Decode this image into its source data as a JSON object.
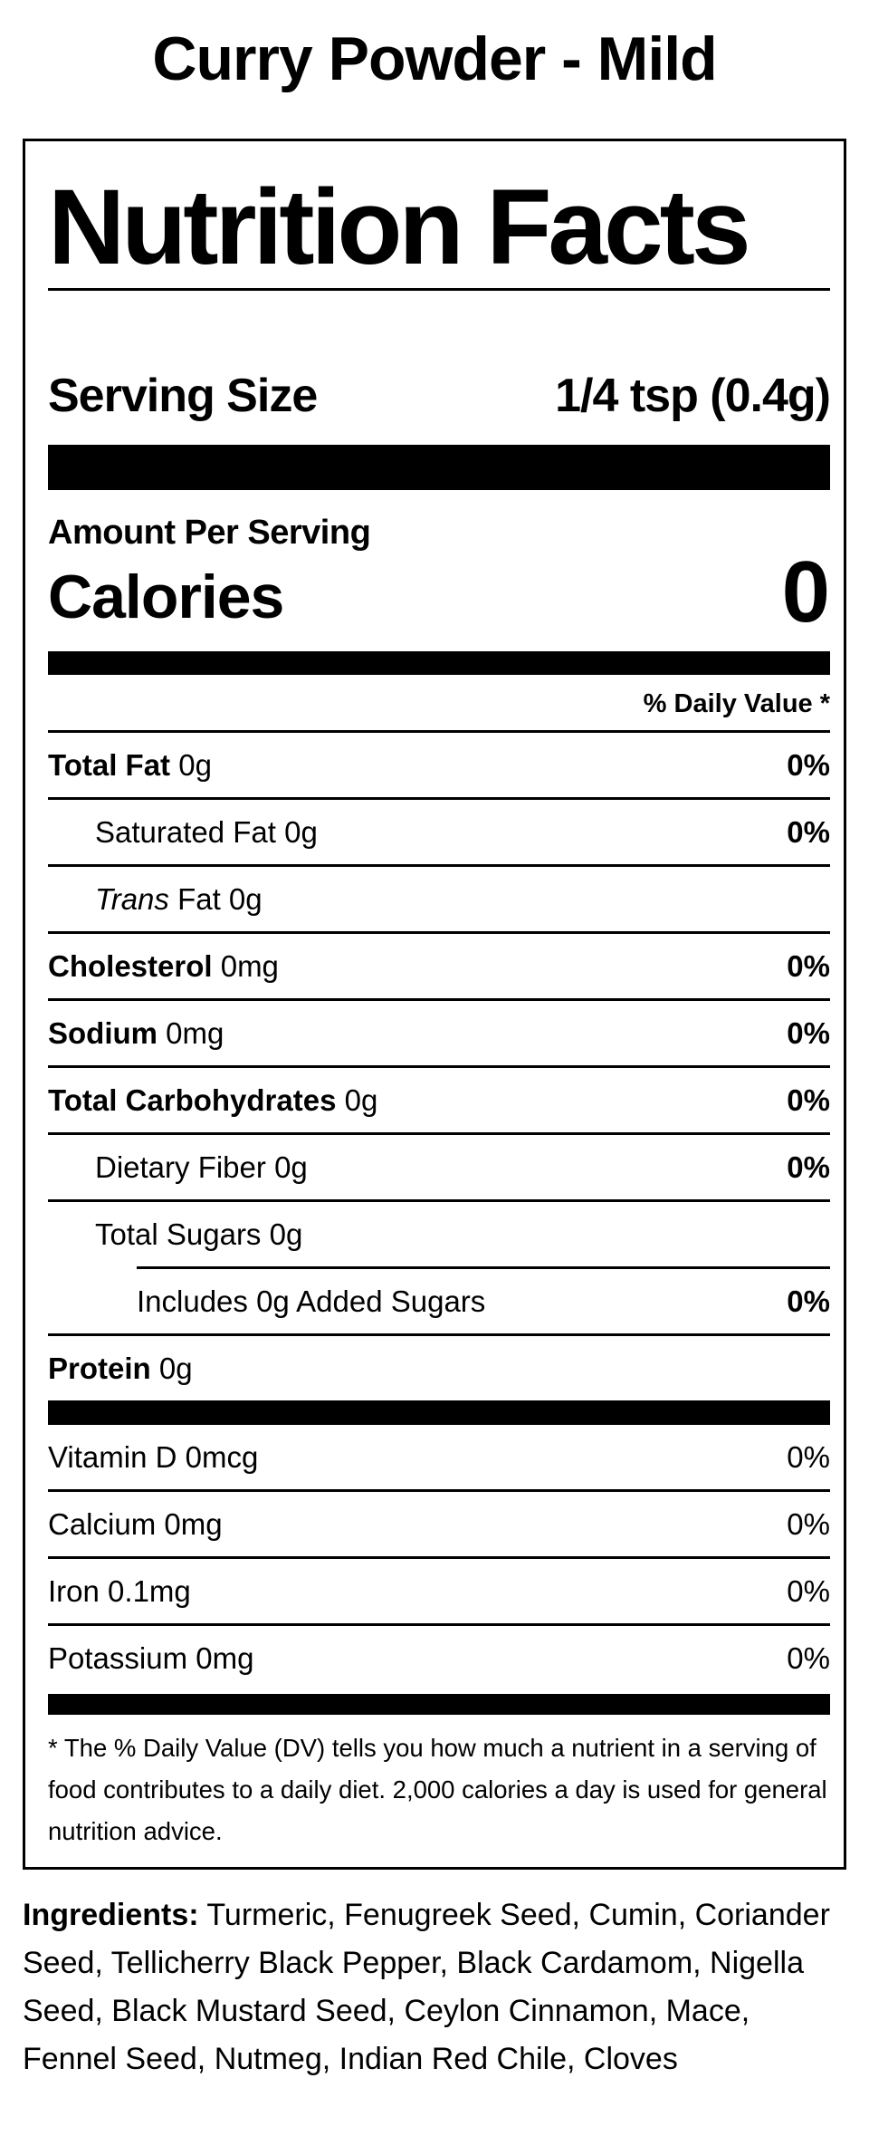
{
  "product": {
    "title": "Curry Powder - Mild"
  },
  "label": {
    "heading": "Nutrition Facts",
    "serving": {
      "label": "Serving Size",
      "value": "1/4 tsp (0.4g)"
    },
    "amount_per_serving": "Amount Per Serving",
    "calories": {
      "label": "Calories",
      "value": "0"
    },
    "daily_value_header": "% Daily Value *",
    "rows": [
      {
        "name": "Total Fat",
        "amount": "0g",
        "dv": "0%"
      },
      {
        "name": "Saturated Fat",
        "amount": "0g",
        "dv": "0%"
      },
      {
        "name": "Trans",
        "amount": "Fat 0g",
        "dv": ""
      },
      {
        "name": "Cholesterol",
        "amount": "0mg",
        "dv": "0%"
      },
      {
        "name": "Sodium",
        "amount": "0mg",
        "dv": "0%"
      },
      {
        "name": "Total Carbohydrates",
        "amount": "0g",
        "dv": "0%"
      },
      {
        "name": "Dietary Fiber",
        "amount": "0g",
        "dv": "0%"
      },
      {
        "name": "Total Sugars",
        "amount": "0g",
        "dv": ""
      },
      {
        "name": "Includes 0g Added Sugars",
        "amount": "",
        "dv": "0%"
      },
      {
        "name": "Protein",
        "amount": "0g",
        "dv": ""
      }
    ],
    "vitamins": [
      {
        "name": "Vitamin D",
        "amount": "0mcg",
        "dv": "0%"
      },
      {
        "name": "Calcium",
        "amount": "0mg",
        "dv": "0%"
      },
      {
        "name": "Iron",
        "amount": "0.1mg",
        "dv": "0%"
      },
      {
        "name": "Potassium",
        "amount": "0mg",
        "dv": "0%"
      }
    ],
    "footnote": "* The % Daily Value (DV) tells you how much a nutrient in a serving of food contributes to a daily diet. 2,000 calories a day is used for general nutrition advice.",
    "colors": {
      "text": "#000000",
      "background": "#ffffff"
    }
  },
  "ingredients": {
    "label": "Ingredients:",
    "text": "Turmeric, Fenugreek Seed, Cumin, Coriander Seed, Tellicherry Black Pepper, Black Cardamom, Nigella Seed, Black Mustard Seed, Ceylon Cinnamon, Mace, Fennel Seed, Nutmeg, Indian Red Chile, Cloves"
  }
}
